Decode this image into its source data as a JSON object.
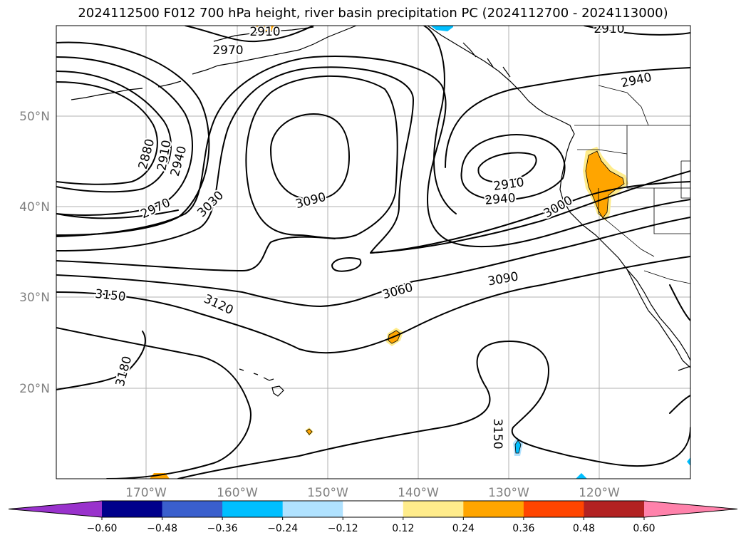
{
  "title": "2024112500 F012 700 hPa height, river basin precipitation PC (2024112700 - 2024113000)",
  "map": {
    "lon_labels": [
      "170°W",
      "160°W",
      "150°W",
      "140°W",
      "130°W",
      "120°W"
    ],
    "lat_labels": [
      "50°N",
      "40°N",
      "30°N",
      "20°N"
    ],
    "contour_labels": [
      "2910",
      "2970",
      "2910",
      "2940",
      "2880",
      "2910",
      "2940",
      "2970",
      "3030",
      "3090",
      "2910",
      "2940",
      "3000",
      "3060",
      "3090",
      "3150",
      "3120",
      "3180",
      "3150"
    ]
  },
  "colorbar": {
    "ticks": [
      "−0.60",
      "−0.48",
      "−0.36",
      "−0.24",
      "−0.12",
      "0.12",
      "0.24",
      "0.36",
      "0.48",
      "0.60"
    ],
    "colors": [
      "#9932cc",
      "#00008b",
      "#3a5fcd",
      "#00bfff",
      "#b0e2ff",
      "#ffffff",
      "#ffec8b",
      "#ffa500",
      "#ff4500",
      "#b22222",
      "#ff82ab"
    ]
  }
}
